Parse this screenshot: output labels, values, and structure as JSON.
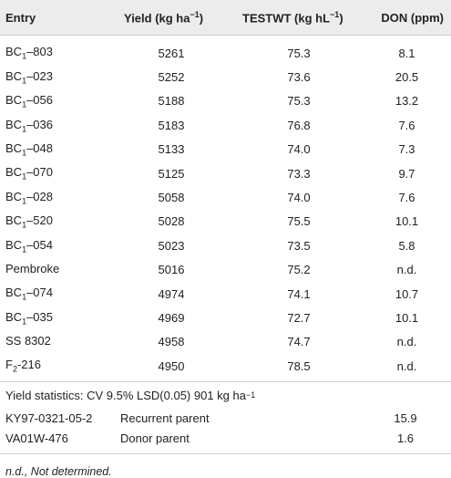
{
  "headers": {
    "entry": "Entry",
    "yield": "Yield (kg ha",
    "yield_sup": "−1",
    "yield_close": ")",
    "testwt": "TESTWT (kg hL",
    "testwt_sup": "−1",
    "testwt_close": ")",
    "don": "DON (ppm)"
  },
  "rows": [
    {
      "prefix": "BC",
      "sub": "1",
      "suffix": "–803",
      "yield": "5261",
      "testwt": "75.3",
      "don": "8.1"
    },
    {
      "prefix": "BC",
      "sub": "1",
      "suffix": "–023",
      "yield": "5252",
      "testwt": "73.6",
      "don": "20.5"
    },
    {
      "prefix": "BC",
      "sub": "1",
      "suffix": "–056",
      "yield": "5188",
      "testwt": "75.3",
      "don": "13.2"
    },
    {
      "prefix": "BC",
      "sub": "1",
      "suffix": "–036",
      "yield": "5183",
      "testwt": "76.8",
      "don": "7.6"
    },
    {
      "prefix": "BC",
      "sub": "1",
      "suffix": "–048",
      "yield": "5133",
      "testwt": "74.0",
      "don": "7.3"
    },
    {
      "prefix": "BC",
      "sub": "1",
      "suffix": "–070",
      "yield": "5125",
      "testwt": "73.3",
      "don": "9.7"
    },
    {
      "prefix": "BC",
      "sub": "1",
      "suffix": "–028",
      "yield": "5058",
      "testwt": "74.0",
      "don": "7.6"
    },
    {
      "prefix": "BC",
      "sub": "1",
      "suffix": "–520",
      "yield": "5028",
      "testwt": "75.5",
      "don": "10.1"
    },
    {
      "prefix": "BC",
      "sub": "1",
      "suffix": "–054",
      "yield": "5023",
      "testwt": "73.5",
      "don": "5.8"
    },
    {
      "prefix": "Pembroke",
      "sub": "",
      "suffix": "",
      "yield": "5016",
      "testwt": "75.2",
      "don": "n.d."
    },
    {
      "prefix": "BC",
      "sub": "1",
      "suffix": "–074",
      "yield": "4974",
      "testwt": "74.1",
      "don": "10.7"
    },
    {
      "prefix": "BC",
      "sub": "1",
      "suffix": "–035",
      "yield": "4969",
      "testwt": "72.7",
      "don": "10.1"
    },
    {
      "prefix": "SS 8302",
      "sub": "",
      "suffix": "",
      "yield": "4958",
      "testwt": "74.7",
      "don": "n.d."
    },
    {
      "prefix": "F",
      "sub": "2",
      "suffix": "-216",
      "yield": "4950",
      "testwt": "78.5",
      "don": "n.d."
    }
  ],
  "stats": {
    "text": "Yield statistics: CV 9.5% LSD(0.05) 901 kg ha",
    "sup": "−1"
  },
  "parents": [
    {
      "name": "KY97-0321-05-2",
      "role": "Recurrent parent",
      "don": "15.9"
    },
    {
      "name": "VA01W-476",
      "role": "Donor parent",
      "don": "1.6"
    }
  ],
  "footnote": "n.d., Not determined."
}
